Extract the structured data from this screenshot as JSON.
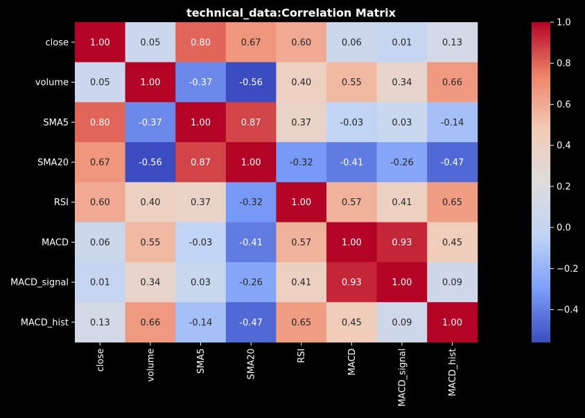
{
  "chart_data": {
    "type": "heatmap",
    "title": "technical_data:Correlation Matrix",
    "xlabel": "",
    "ylabel": "",
    "x_categories": [
      "close",
      "volume",
      "SMA5",
      "SMA20",
      "RSI",
      "MACD",
      "MACD_signal",
      "MACD_hist"
    ],
    "y_categories": [
      "close",
      "volume",
      "SMA5",
      "SMA20",
      "RSI",
      "MACD",
      "MACD_signal",
      "MACD_hist"
    ],
    "values": [
      [
        1.0,
        0.05,
        0.8,
        0.67,
        0.6,
        0.06,
        0.01,
        0.13
      ],
      [
        0.05,
        1.0,
        -0.37,
        -0.56,
        0.4,
        0.55,
        0.34,
        0.66
      ],
      [
        0.8,
        -0.37,
        1.0,
        0.87,
        0.37,
        -0.03,
        0.03,
        -0.14
      ],
      [
        0.67,
        -0.56,
        0.87,
        1.0,
        -0.32,
        -0.41,
        -0.26,
        -0.47
      ],
      [
        0.6,
        0.4,
        0.37,
        -0.32,
        1.0,
        0.57,
        0.41,
        0.65
      ],
      [
        0.06,
        0.55,
        -0.03,
        -0.41,
        0.57,
        1.0,
        0.93,
        0.45
      ],
      [
        0.01,
        0.34,
        0.03,
        -0.26,
        0.41,
        0.93,
        1.0,
        0.09
      ],
      [
        0.13,
        0.66,
        -0.14,
        -0.47,
        0.65,
        0.45,
        0.09,
        1.0
      ]
    ],
    "annotation_format": "0.00",
    "colormap": "coolwarm",
    "vmin": -0.56,
    "vmax": 1.0,
    "colorbar": {
      "ticks": [
        -0.4,
        -0.2,
        0.0,
        0.2,
        0.4,
        0.6,
        0.8,
        1.0
      ],
      "tick_labels": [
        "−0.4",
        "−0.2",
        "0.0",
        "0.2",
        "0.4",
        "0.6",
        "0.8",
        "1.0"
      ],
      "placement": "right"
    },
    "grid": false,
    "legend": "none"
  },
  "colors": {
    "background": "#000000",
    "text": "#ffffff",
    "cmap_stops": [
      "#3b4cc0",
      "#7b9ff9",
      "#c0d4f5",
      "#dddcdc",
      "#f2cbb7",
      "#ee8468",
      "#b40426"
    ]
  }
}
